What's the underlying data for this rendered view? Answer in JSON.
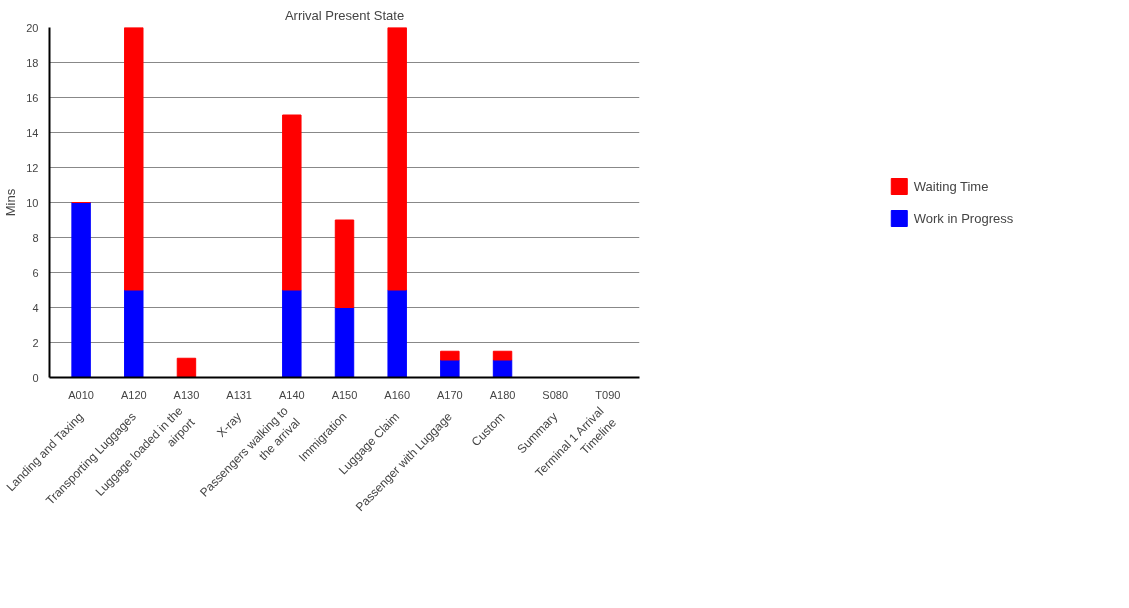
{
  "chart_data": {
    "type": "bar",
    "title": "Arrival Present State",
    "ylabel": "Mins",
    "stacked": true,
    "categories": [
      "A010",
      "A120",
      "A130",
      "A131",
      "A140",
      "A150",
      "A160",
      "A170",
      "A180",
      "S080",
      "T090"
    ],
    "series": [
      {
        "name": "Work in Progress",
        "color": "#0000ff",
        "values": [
          10,
          5,
          0,
          0,
          5,
          4,
          5,
          1,
          1,
          0,
          0
        ]
      },
      {
        "name": "Waiting Time",
        "color": "#ff0000",
        "values": [
          0,
          15,
          1.1,
          0,
          10,
          5,
          15,
          0.5,
          0.5,
          0,
          0
        ]
      }
    ],
    "annotations": [
      "Landing and Taxing",
      "Transporting Luggages",
      "Luggage loaded in the airport",
      "X-ray",
      "Passengers walking to the arrival",
      "Immigration",
      "Luggage Claim",
      "Passenger with Luggage",
      "Custom",
      "Summary",
      "Terminal 1 Arrival Timeline"
    ],
    "ylim": [
      0,
      20
    ],
    "yticks": [
      0,
      2,
      4,
      6,
      8,
      10,
      12,
      14,
      16,
      18,
      20
    ],
    "grid": "y",
    "legend": "right"
  }
}
